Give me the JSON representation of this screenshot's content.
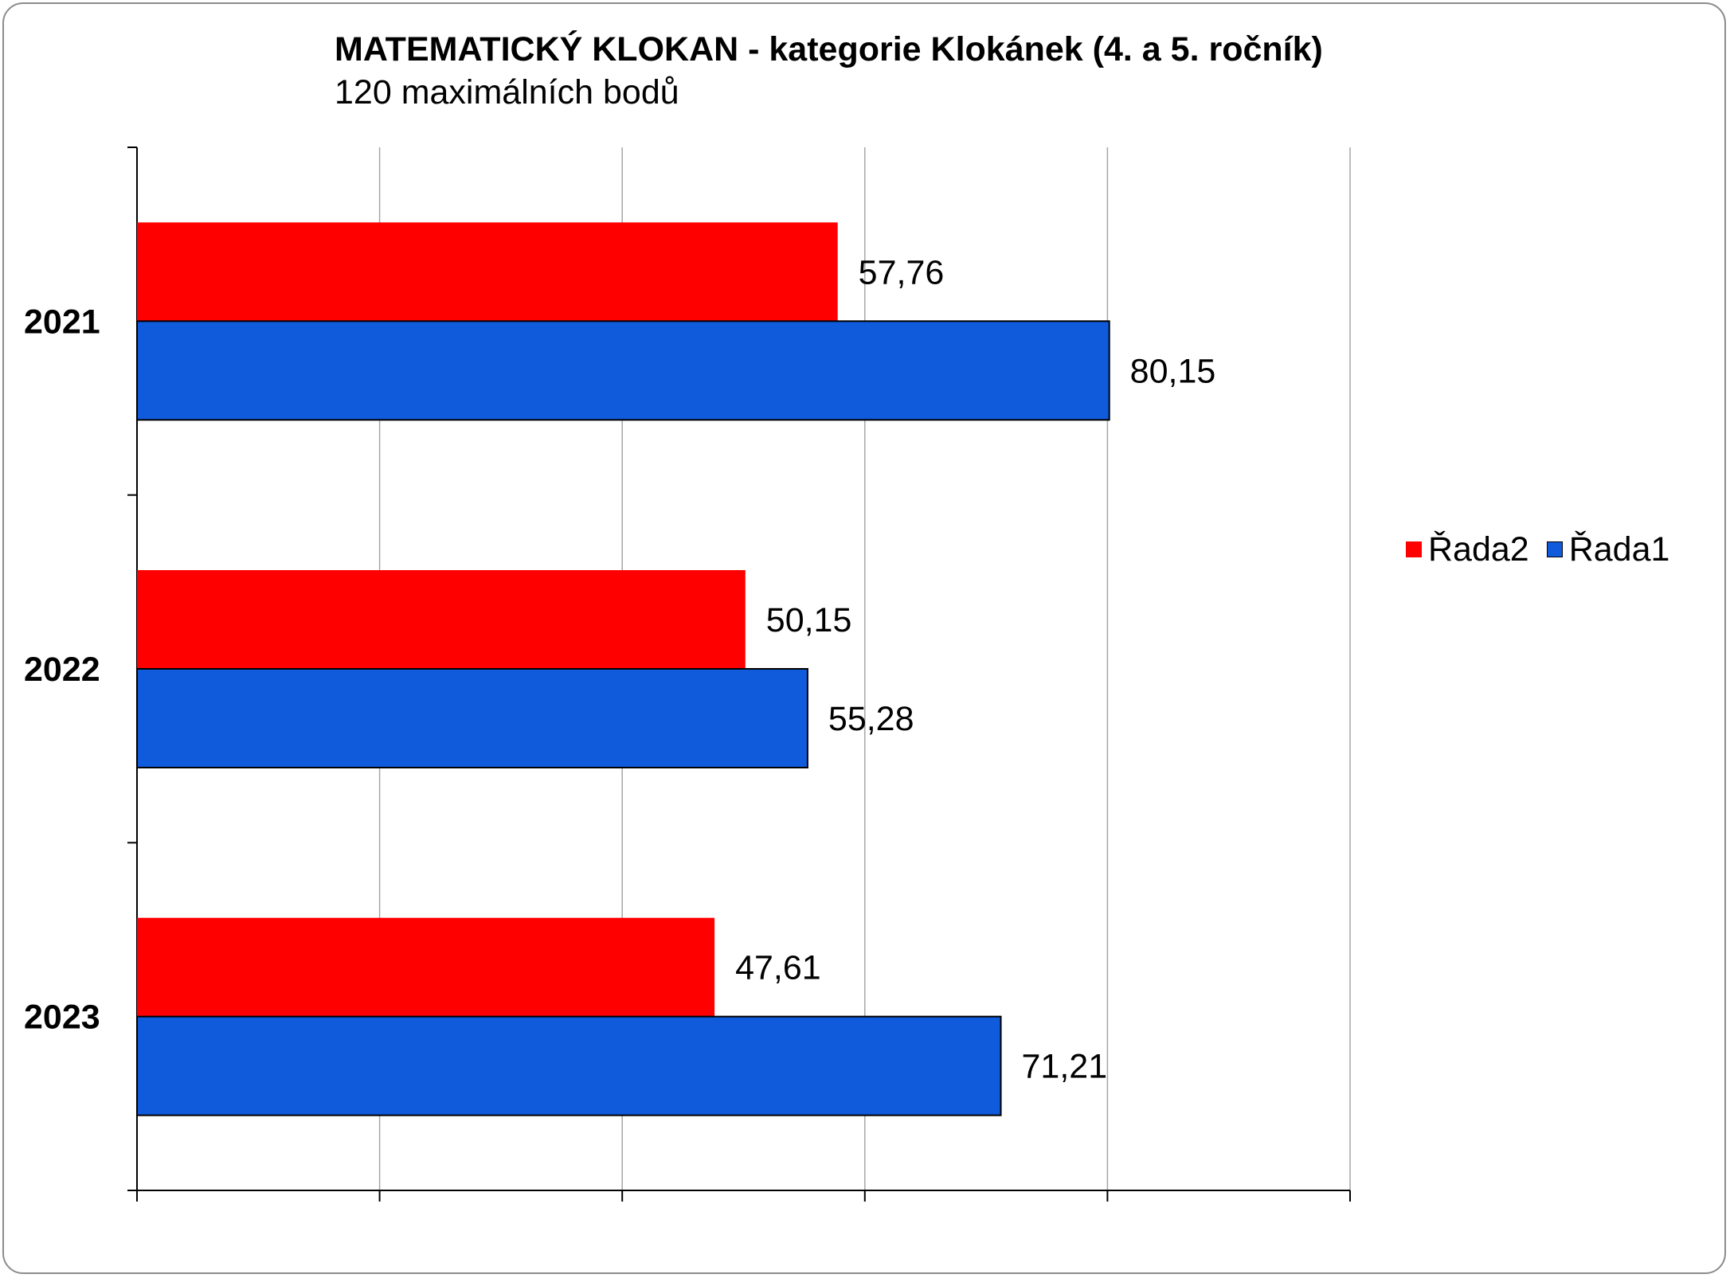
{
  "chart_data": {
    "type": "bar",
    "orientation": "horizontal",
    "title": "MATEMATICKÝ KLOKAN - kategorie Klokánek (4. a 5. ročník)",
    "subtitle": "120 maximálních bodů",
    "categories": [
      "2021",
      "2022",
      "2023"
    ],
    "series": [
      {
        "name": "Řada2",
        "color": "#ff0000",
        "values": [
          57.76,
          50.15,
          47.61
        ],
        "labels": [
          "57,76",
          "50,15",
          "47,61"
        ]
      },
      {
        "name": "Řada1",
        "color": "#0f5bdc",
        "values": [
          80.15,
          55.28,
          71.21
        ],
        "labels": [
          "80,15",
          "55,28",
          "71,21"
        ]
      }
    ],
    "xlim": [
      0,
      100
    ],
    "grid": true,
    "legend": "right"
  }
}
